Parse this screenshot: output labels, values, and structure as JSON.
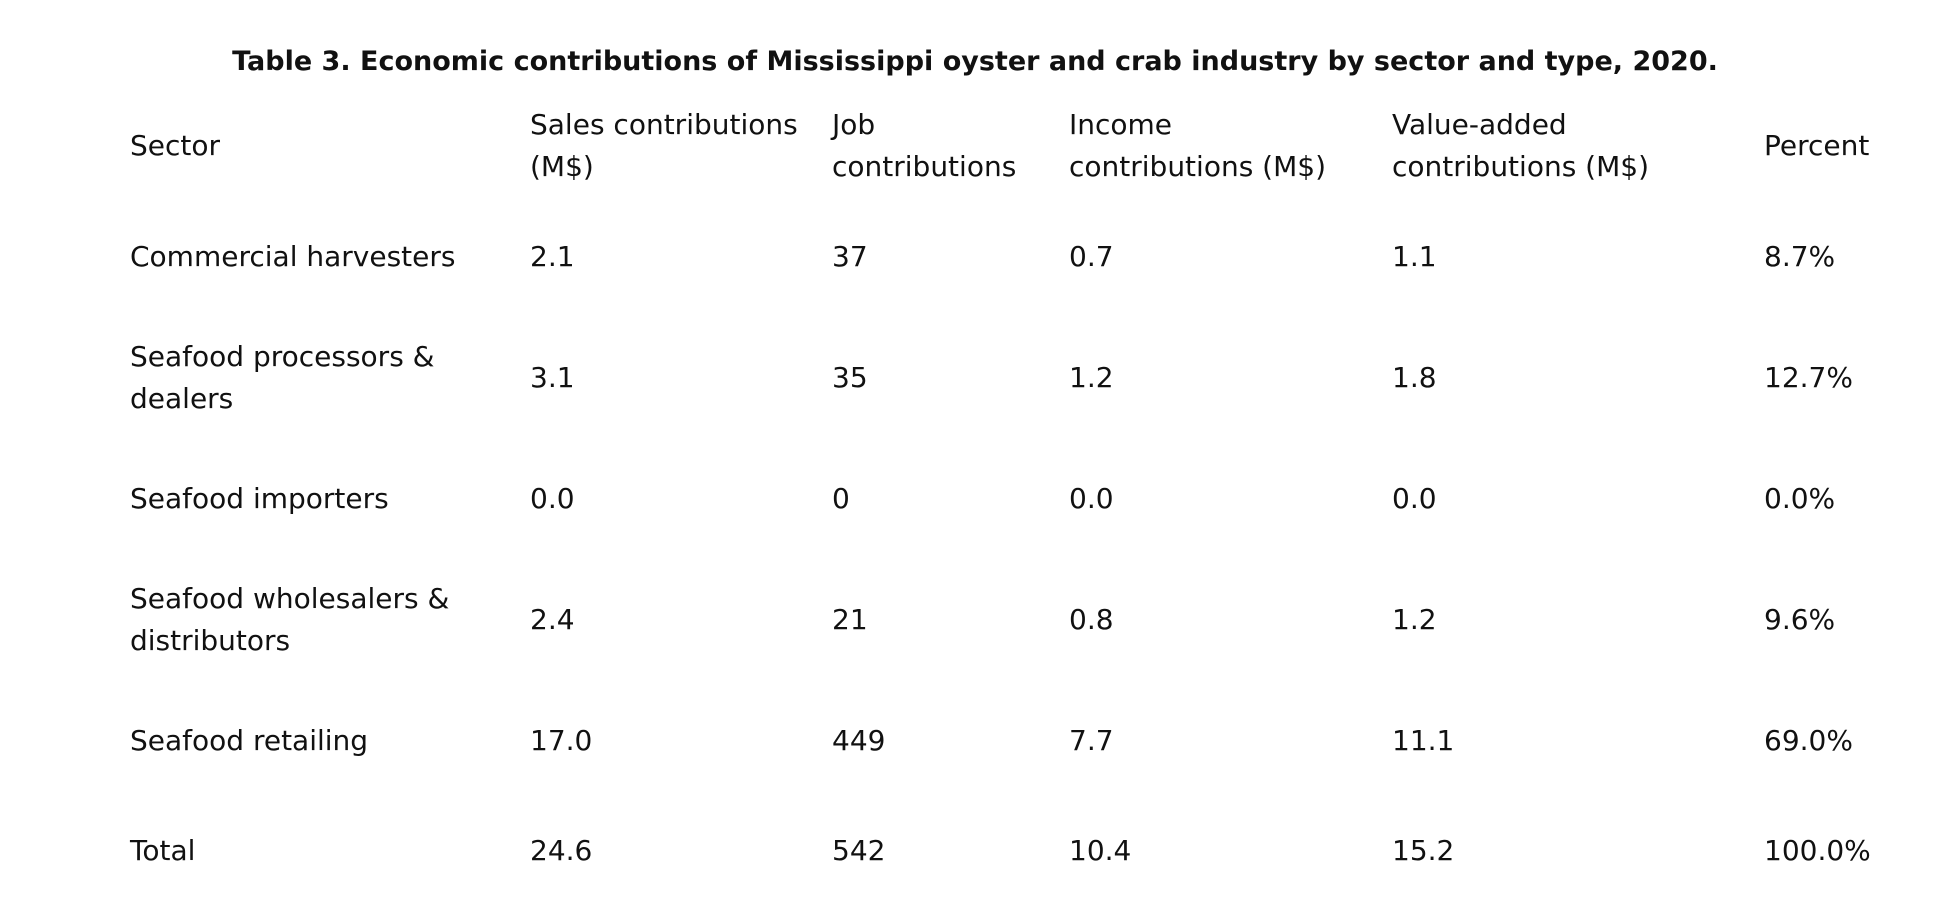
{
  "title": "Table 3. Economic contributions of Mississippi oyster and crab industry by sector and type, 2020.",
  "table": {
    "headers": [
      "Sector",
      "Sales contributions (M$)",
      "Job contributions",
      "Income contributions (M$)",
      "Value-added contributions (M$)",
      "Percent"
    ],
    "rows": [
      [
        "Commercial harvesters",
        "2.1",
        "37",
        "0.7",
        "1.1",
        "8.7%"
      ],
      [
        "Seafood processors & dealers",
        "3.1",
        "35",
        "1.2",
        "1.8",
        "12.7%"
      ],
      [
        "Seafood importers",
        "0.0",
        "0",
        "0.0",
        "0.0",
        "0.0%"
      ],
      [
        "Seafood wholesalers & distributors",
        "2.4",
        "21",
        "0.8",
        "1.2",
        "9.6%"
      ],
      [
        "Seafood retailing",
        "17.0",
        "449",
        "7.7",
        "11.1",
        "69.0%"
      ],
      [
        "Total",
        "24.6",
        "542",
        "10.4",
        "15.2",
        "100.0%"
      ]
    ]
  }
}
